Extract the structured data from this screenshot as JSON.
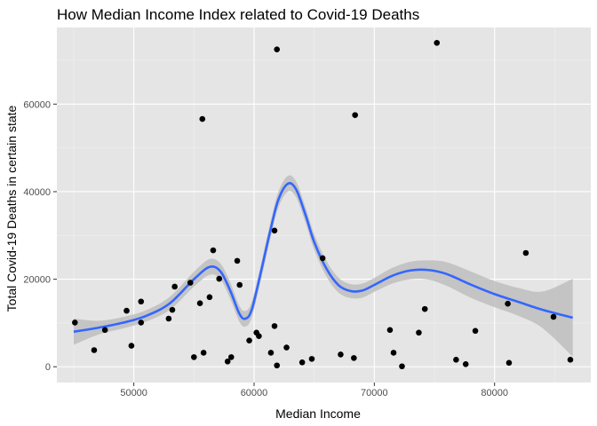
{
  "chart_data": {
    "type": "scatter",
    "title": "How Median Income Index related to Covid-19 Deaths",
    "xlabel": "Median Income",
    "ylabel": "Total Covid-19 Deaths in certain state",
    "xlim": [
      43600,
      88000
    ],
    "ylim": [
      -3600,
      77500
    ],
    "x_ticks": [
      50000,
      60000,
      70000,
      80000
    ],
    "x_tick_labels": [
      "50000",
      "60000",
      "70000",
      "80000"
    ],
    "y_ticks": [
      0,
      20000,
      40000,
      60000
    ],
    "y_tick_labels": [
      "0",
      "20000",
      "40000",
      "60000"
    ],
    "grid": true,
    "legend": "none",
    "colors": {
      "panel": "#e5e5e5",
      "grid_major": "#ffffff",
      "grid_minor": "#f2f2f2",
      "points": "#000000",
      "smooth_line": "#3366ff",
      "ribbon": "#bebebe"
    },
    "points": [
      {
        "x": 45100,
        "y": 10100
      },
      {
        "x": 46700,
        "y": 3800
      },
      {
        "x": 47600,
        "y": 8400
      },
      {
        "x": 49400,
        "y": 12800
      },
      {
        "x": 49800,
        "y": 4800
      },
      {
        "x": 50600,
        "y": 14900
      },
      {
        "x": 50600,
        "y": 10100
      },
      {
        "x": 52900,
        "y": 11000
      },
      {
        "x": 53200,
        "y": 13000
      },
      {
        "x": 53400,
        "y": 18300
      },
      {
        "x": 54700,
        "y": 19200
      },
      {
        "x": 55000,
        "y": 2200
      },
      {
        "x": 55500,
        "y": 14500
      },
      {
        "x": 55700,
        "y": 56600
      },
      {
        "x": 55800,
        "y": 3200
      },
      {
        "x": 56300,
        "y": 15900
      },
      {
        "x": 56600,
        "y": 26600
      },
      {
        "x": 57100,
        "y": 20100
      },
      {
        "x": 57800,
        "y": 1200
      },
      {
        "x": 58100,
        "y": 2200
      },
      {
        "x": 58600,
        "y": 24200
      },
      {
        "x": 58800,
        "y": 18700
      },
      {
        "x": 59600,
        "y": 6000
      },
      {
        "x": 60200,
        "y": 7800
      },
      {
        "x": 60400,
        "y": 7000
      },
      {
        "x": 61400,
        "y": 3200
      },
      {
        "x": 61700,
        "y": 31100
      },
      {
        "x": 61700,
        "y": 9300
      },
      {
        "x": 61900,
        "y": 72500
      },
      {
        "x": 61900,
        "y": 300
      },
      {
        "x": 62700,
        "y": 4400
      },
      {
        "x": 64000,
        "y": 1000
      },
      {
        "x": 64800,
        "y": 1800
      },
      {
        "x": 65700,
        "y": 24800
      },
      {
        "x": 67200,
        "y": 2800
      },
      {
        "x": 68300,
        "y": 2000
      },
      {
        "x": 68400,
        "y": 57500
      },
      {
        "x": 71300,
        "y": 8400
      },
      {
        "x": 71600,
        "y": 3200
      },
      {
        "x": 72300,
        "y": 100
      },
      {
        "x": 73700,
        "y": 7800
      },
      {
        "x": 74200,
        "y": 13200
      },
      {
        "x": 75200,
        "y": 74000
      },
      {
        "x": 76800,
        "y": 1600
      },
      {
        "x": 77600,
        "y": 600
      },
      {
        "x": 78400,
        "y": 8200
      },
      {
        "x": 81100,
        "y": 14400
      },
      {
        "x": 81200,
        "y": 900
      },
      {
        "x": 82600,
        "y": 26000
      },
      {
        "x": 84900,
        "y": 11400
      },
      {
        "x": 86300,
        "y": 1600
      }
    ],
    "smooth": [
      {
        "x": 45000,
        "y": 8000,
        "lo": 5000,
        "hi": 11000
      },
      {
        "x": 47000,
        "y": 8900,
        "lo": 7300,
        "hi": 10500
      },
      {
        "x": 49000,
        "y": 10000,
        "lo": 8700,
        "hi": 11300
      },
      {
        "x": 51000,
        "y": 11600,
        "lo": 10300,
        "hi": 12900
      },
      {
        "x": 53000,
        "y": 14500,
        "lo": 13000,
        "hi": 16000
      },
      {
        "x": 55000,
        "y": 20000,
        "lo": 18300,
        "hi": 21700
      },
      {
        "x": 56300,
        "y": 22800,
        "lo": 21000,
        "hi": 24600
      },
      {
        "x": 57200,
        "y": 21800,
        "lo": 20000,
        "hi": 23600
      },
      {
        "x": 58000,
        "y": 17500,
        "lo": 15600,
        "hi": 19400
      },
      {
        "x": 58800,
        "y": 12000,
        "lo": 10200,
        "hi": 13800
      },
      {
        "x": 59300,
        "y": 11000,
        "lo": 9200,
        "hi": 12800
      },
      {
        "x": 59800,
        "y": 13000,
        "lo": 11200,
        "hi": 14800
      },
      {
        "x": 60500,
        "y": 20800,
        "lo": 19000,
        "hi": 22600
      },
      {
        "x": 61300,
        "y": 30500,
        "lo": 28700,
        "hi": 32300
      },
      {
        "x": 62000,
        "y": 38000,
        "lo": 36200,
        "hi": 39800
      },
      {
        "x": 62800,
        "y": 41800,
        "lo": 40000,
        "hi": 43600
      },
      {
        "x": 63500,
        "y": 40500,
        "lo": 38700,
        "hi": 42300
      },
      {
        "x": 64300,
        "y": 34500,
        "lo": 32700,
        "hi": 36300
      },
      {
        "x": 65000,
        "y": 28500,
        "lo": 26700,
        "hi": 30300
      },
      {
        "x": 66000,
        "y": 22500,
        "lo": 20700,
        "hi": 24300
      },
      {
        "x": 67000,
        "y": 18700,
        "lo": 17000,
        "hi": 20400
      },
      {
        "x": 68000,
        "y": 17300,
        "lo": 15700,
        "hi": 18900
      },
      {
        "x": 69000,
        "y": 17400,
        "lo": 15800,
        "hi": 19000
      },
      {
        "x": 70000,
        "y": 18700,
        "lo": 17100,
        "hi": 20300
      },
      {
        "x": 71500,
        "y": 20800,
        "lo": 19000,
        "hi": 22600
      },
      {
        "x": 73000,
        "y": 22000,
        "lo": 20000,
        "hi": 24000
      },
      {
        "x": 74500,
        "y": 22100,
        "lo": 19900,
        "hi": 24300
      },
      {
        "x": 76000,
        "y": 21200,
        "lo": 18500,
        "hi": 23900
      },
      {
        "x": 78000,
        "y": 18800,
        "lo": 15800,
        "hi": 21800
      },
      {
        "x": 80000,
        "y": 16600,
        "lo": 13600,
        "hi": 19600
      },
      {
        "x": 82000,
        "y": 14800,
        "lo": 11600,
        "hi": 18000
      },
      {
        "x": 84000,
        "y": 13000,
        "lo": 8800,
        "hi": 17200
      },
      {
        "x": 86500,
        "y": 11200,
        "lo": 2300,
        "hi": 20100
      }
    ]
  }
}
